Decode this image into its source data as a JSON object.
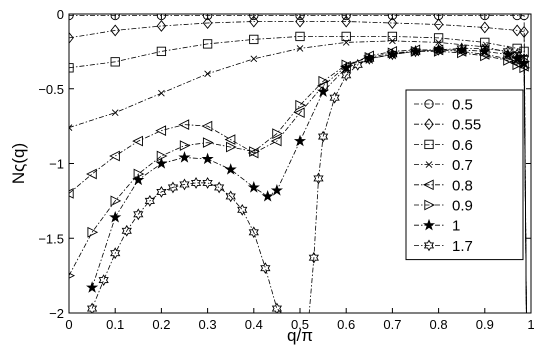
{
  "chart_data": {
    "type": "line",
    "xlabel": "q/π",
    "ylabel": "Nς(q)",
    "xlim": [
      0,
      1
    ],
    "ylim": [
      -2,
      0
    ],
    "x_ticks": [
      "0",
      "0.1",
      "0.2",
      "0.3",
      "0.4",
      "0.5",
      "0.6",
      "0.7",
      "0.8",
      "0.9",
      "1"
    ],
    "y_ticks": [
      "0",
      "−0.5",
      "−1",
      "−1.5",
      "−2"
    ],
    "grid": false,
    "legend_position": "right",
    "series": [
      {
        "name": "0.5",
        "marker": "circle",
        "line": "dash-dot",
        "x": [
          0.0,
          0.1,
          0.2,
          0.3,
          0.4,
          0.5,
          0.6,
          0.7,
          0.8,
          0.9,
          0.97,
          0.985,
          0.99
        ],
        "y": [
          -0.01,
          -0.01,
          -0.01,
          -0.01,
          -0.01,
          -0.01,
          -0.01,
          -0.01,
          -0.01,
          -0.01,
          -0.01,
          -0.01,
          -2.0
        ]
      },
      {
        "name": "0.55",
        "marker": "diamond",
        "line": "dash-dot",
        "x": [
          0.0,
          0.1,
          0.2,
          0.3,
          0.4,
          0.5,
          0.6,
          0.7,
          0.8,
          0.9,
          0.97,
          0.985,
          0.99
        ],
        "y": [
          -0.16,
          -0.11,
          -0.08,
          -0.06,
          -0.05,
          -0.05,
          -0.05,
          -0.06,
          -0.07,
          -0.09,
          -0.11,
          -0.12,
          -2.0
        ]
      },
      {
        "name": "0.6",
        "marker": "square",
        "line": "dash-dot",
        "x": [
          0.0,
          0.1,
          0.2,
          0.3,
          0.4,
          0.5,
          0.6,
          0.7,
          0.8,
          0.9,
          0.97,
          0.985,
          0.99
        ],
        "y": [
          -0.36,
          -0.32,
          -0.25,
          -0.2,
          -0.17,
          -0.15,
          -0.15,
          -0.15,
          -0.16,
          -0.19,
          -0.23,
          -0.25,
          -2.0
        ]
      },
      {
        "name": "0.7",
        "marker": "x",
        "line": "dash-dot",
        "x": [
          0.0,
          0.1,
          0.2,
          0.3,
          0.4,
          0.5,
          0.6,
          0.7,
          0.8,
          0.9,
          0.97,
          0.985,
          0.99
        ],
        "y": [
          -0.76,
          -0.66,
          -0.53,
          -0.4,
          -0.3,
          -0.23,
          -0.19,
          -0.18,
          -0.19,
          -0.22,
          -0.27,
          -0.29,
          -2.0
        ]
      },
      {
        "name": "0.8",
        "marker": "triangle-left",
        "line": "dash-dot",
        "x": [
          0.0,
          0.05,
          0.1,
          0.15,
          0.2,
          0.25,
          0.3,
          0.35,
          0.4,
          0.45,
          0.5,
          0.55,
          0.6,
          0.65,
          0.7,
          0.75,
          0.8,
          0.85,
          0.9,
          0.95,
          0.97,
          0.985,
          0.99
        ],
        "y": [
          -1.2,
          -1.07,
          -0.95,
          -0.85,
          -0.78,
          -0.74,
          -0.75,
          -0.84,
          -0.93,
          -0.85,
          -0.66,
          -0.48,
          -0.35,
          -0.28,
          -0.25,
          -0.24,
          -0.24,
          -0.25,
          -0.27,
          -0.3,
          -0.33,
          -0.35,
          -2.0
        ]
      },
      {
        "name": "0.9",
        "marker": "triangle-right",
        "line": "dash-dot",
        "x": [
          0.0,
          0.05,
          0.1,
          0.15,
          0.2,
          0.25,
          0.3,
          0.35,
          0.4,
          0.45,
          0.5,
          0.55,
          0.6,
          0.65,
          0.7,
          0.75,
          0.8,
          0.85,
          0.9,
          0.95,
          0.97,
          0.985,
          0.99
        ],
        "y": [
          -1.75,
          -1.46,
          -1.25,
          -1.07,
          -0.95,
          -0.88,
          -0.86,
          -0.89,
          -0.92,
          -0.8,
          -0.61,
          -0.45,
          -0.34,
          -0.29,
          -0.26,
          -0.25,
          -0.25,
          -0.26,
          -0.28,
          -0.31,
          -0.34,
          -0.36,
          -2.0
        ]
      },
      {
        "name": "1",
        "marker": "star",
        "line": "dash-dot",
        "x": [
          0.05,
          0.1,
          0.15,
          0.2,
          0.25,
          0.3,
          0.35,
          0.4,
          0.43,
          0.45,
          0.5,
          0.55,
          0.6,
          0.65,
          0.7,
          0.75,
          0.8,
          0.85,
          0.9,
          0.95,
          0.97,
          0.985,
          0.99
        ],
        "y": [
          -1.83,
          -1.36,
          -1.11,
          -1.0,
          -0.96,
          -0.97,
          -1.04,
          -1.16,
          -1.22,
          -1.18,
          -0.85,
          -0.52,
          -0.36,
          -0.3,
          -0.27,
          -0.25,
          -0.24,
          -0.24,
          -0.25,
          -0.27,
          -0.3,
          -0.33,
          -2.0
        ]
      },
      {
        "name": "1.7",
        "marker": "hexagram",
        "line": "dash-dot",
        "x": [
          0.05,
          0.075,
          0.1,
          0.125,
          0.15,
          0.175,
          0.2,
          0.225,
          0.25,
          0.275,
          0.3,
          0.325,
          0.35,
          0.375,
          0.4,
          0.425,
          0.45,
          0.46,
          0.52,
          0.53,
          0.54,
          0.55,
          0.575,
          0.6,
          0.625,
          0.65,
          0.7,
          0.75,
          0.8,
          0.85,
          0.9,
          0.95,
          0.97,
          0.985,
          0.99
        ],
        "y": [
          -1.97,
          -1.78,
          -1.6,
          -1.45,
          -1.34,
          -1.25,
          -1.19,
          -1.16,
          -1.14,
          -1.13,
          -1.13,
          -1.16,
          -1.22,
          -1.31,
          -1.46,
          -1.7,
          -1.97,
          -2.0,
          -2.0,
          -1.63,
          -1.1,
          -0.82,
          -0.56,
          -0.41,
          -0.34,
          -0.3,
          -0.27,
          -0.25,
          -0.24,
          -0.23,
          -0.23,
          -0.25,
          -0.27,
          -0.3,
          -2.0
        ]
      }
    ]
  }
}
